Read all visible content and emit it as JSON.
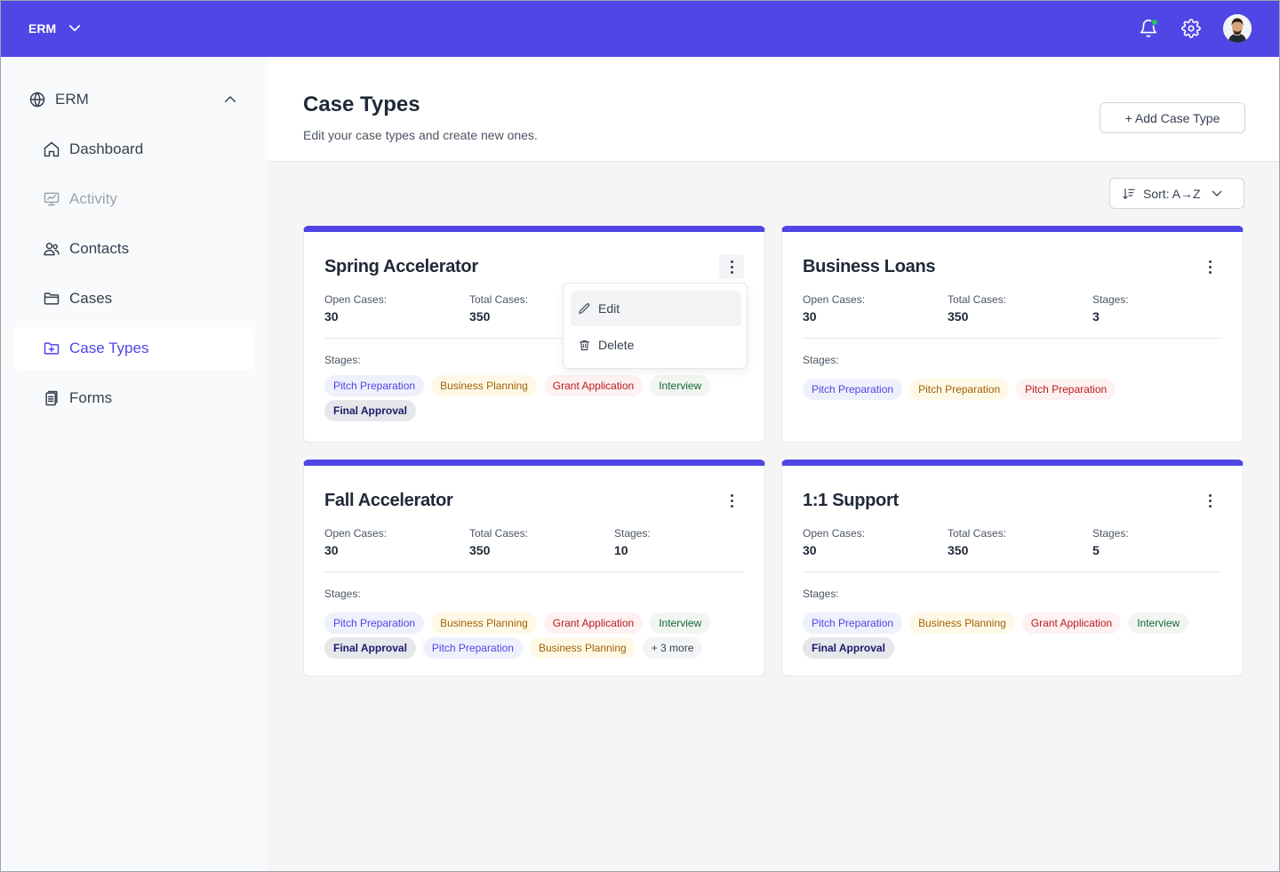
{
  "topbar": {
    "brand": "ERM",
    "colors": {
      "accent": "#4f46e5",
      "notification_dot": "#22c55e"
    },
    "icons": [
      "chevron-down-icon",
      "bell-icon",
      "gear-icon"
    ]
  },
  "sidebar": {
    "group": {
      "label": "ERM",
      "icon": "globe-icon",
      "expanded": true
    },
    "items": [
      {
        "label": "Dashboard",
        "icon": "home-icon",
        "state": "normal"
      },
      {
        "label": "Activity",
        "icon": "presentation-chart-icon",
        "state": "disabled"
      },
      {
        "label": "Contacts",
        "icon": "users-icon",
        "state": "normal"
      },
      {
        "label": "Cases",
        "icon": "folder-icon",
        "state": "normal"
      },
      {
        "label": "Case Types",
        "icon": "folder-plus-icon",
        "state": "active"
      },
      {
        "label": "Forms",
        "icon": "clipboard-icon",
        "state": "normal"
      }
    ]
  },
  "header": {
    "title": "Case Types",
    "subtitle": "Edit your case types and create new ones.",
    "add_button": "+ Add Case Type"
  },
  "sort": {
    "label": "Sort: A→Z"
  },
  "cards": [
    {
      "title": "Spring Accelerator",
      "open_label": "Open Cases:",
      "open": "30",
      "total_label": "Total Cases:",
      "total": "350",
      "stages_label": "Stages:",
      "chips": [
        {
          "label": "Pitch Preparation",
          "color": "blue"
        },
        {
          "label": "Business Planning",
          "color": "yellow"
        },
        {
          "label": "Grant Application",
          "color": "red"
        },
        {
          "label": "Interview",
          "color": "green"
        },
        {
          "label": "Final Approval",
          "color": "navy"
        }
      ]
    },
    {
      "title": "Business Loans",
      "open_label": "Open Cases:",
      "open": "30",
      "total_label": "Total Cases:",
      "total": "350",
      "stage_count_label": "Stages:",
      "stage_count": "3",
      "stages_label": "Stages:",
      "chips": [
        {
          "label": "Pitch Preparation",
          "color": "blue"
        },
        {
          "label": "Pitch Preparation",
          "color": "yellow"
        },
        {
          "label": "Pitch Preparation",
          "color": "red"
        }
      ]
    },
    {
      "title": "Fall Accelerator",
      "open_label": "Open Cases:",
      "open": "30",
      "total_label": "Total Cases:",
      "total": "350",
      "stage_count_label": "Stages:",
      "stage_count": "10",
      "stages_label": "Stages:",
      "chips": [
        {
          "label": "Pitch Preparation",
          "color": "blue"
        },
        {
          "label": "Business Planning",
          "color": "yellow"
        },
        {
          "label": "Grant Application",
          "color": "red"
        },
        {
          "label": "Interview",
          "color": "green"
        },
        {
          "label": "Final Approval",
          "color": "navy"
        },
        {
          "label": "Pitch Preparation",
          "color": "blue"
        },
        {
          "label": "Business Planning",
          "color": "yellow"
        },
        {
          "label": "+ 3 more",
          "color": "more"
        }
      ]
    },
    {
      "title": "1:1 Support",
      "open_label": "Open Cases:",
      "open": "30",
      "total_label": "Total Cases:",
      "total": "350",
      "stage_count_label": "Stages:",
      "stage_count": "5",
      "stages_label": "Stages:",
      "chips": [
        {
          "label": "Pitch Preparation",
          "color": "blue"
        },
        {
          "label": "Business Planning",
          "color": "yellow"
        },
        {
          "label": "Grant Application",
          "color": "red"
        },
        {
          "label": "Interview",
          "color": "green"
        },
        {
          "label": "Final Approval",
          "color": "navy"
        }
      ]
    }
  ],
  "context_menu": {
    "items": [
      {
        "label": "Edit",
        "icon": "pencil-icon",
        "state": "hover"
      },
      {
        "label": "Delete",
        "icon": "trash-icon",
        "state": "normal"
      }
    ]
  }
}
